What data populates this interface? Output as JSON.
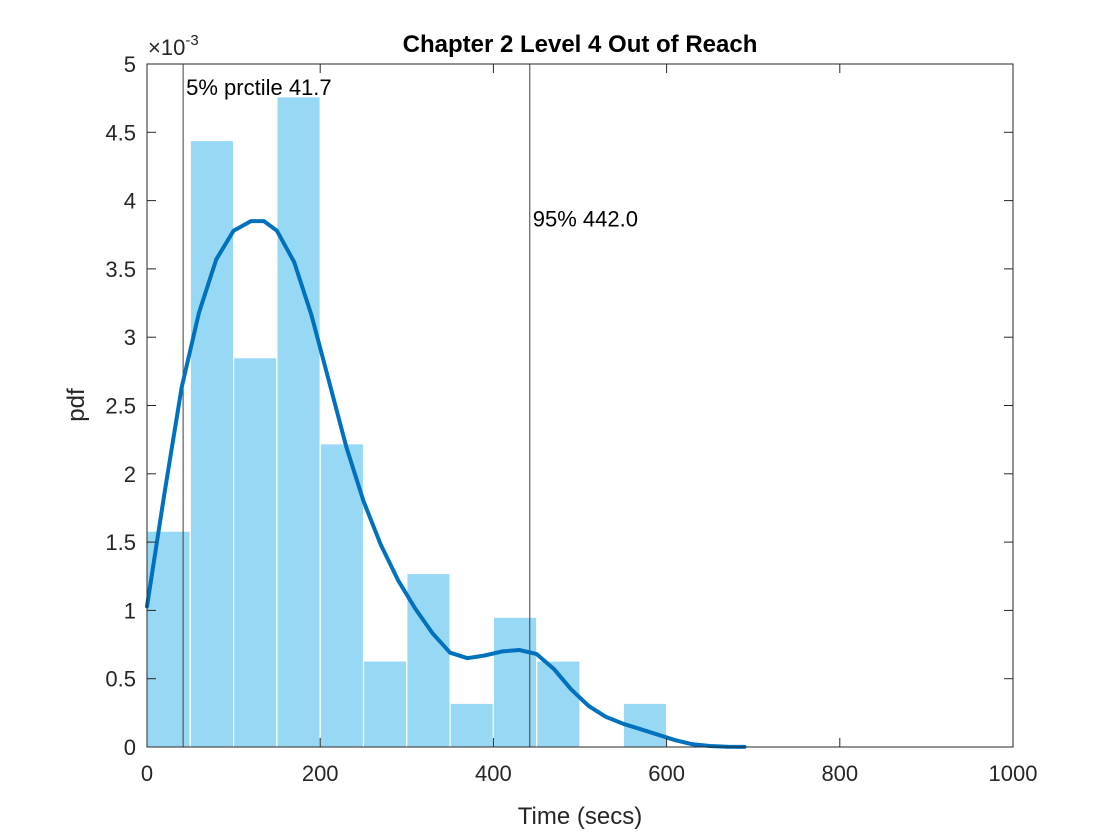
{
  "chart_data": {
    "type": "bar",
    "title": "Chapter 2 Level 4 Out of Reach",
    "xlabel": "Time (secs)",
    "ylabel": "pdf",
    "xlim": [
      0,
      1000
    ],
    "ylim": [
      0,
      0.005
    ],
    "y_exponent_label": "×10",
    "y_exponent_power": "-3",
    "xticks": [
      0,
      200,
      400,
      600,
      800,
      1000
    ],
    "xtick_labels": [
      "0",
      "200",
      "400",
      "600",
      "800",
      "1000"
    ],
    "yticks": [
      0,
      0.0005,
      0.001,
      0.0015,
      0.002,
      0.0025,
      0.003,
      0.0035,
      0.004,
      0.0045,
      0.005
    ],
    "ytick_labels": [
      "0",
      "0.5",
      "1",
      "1.5",
      "2",
      "2.5",
      "3",
      "3.5",
      "4",
      "4.5",
      "5"
    ],
    "bin_edges": [
      0,
      50,
      100,
      150,
      200,
      250,
      300,
      350,
      400,
      450,
      500,
      550,
      600
    ],
    "values": [
      0.00158,
      0.00444,
      0.00285,
      0.00476,
      0.00222,
      0.00063,
      0.00127,
      0.00032,
      0.00095,
      0.00063,
      0,
      0.00032
    ],
    "bar_color": "#97D8F4",
    "curve": {
      "color": "#0072BD",
      "x": [
        0,
        20,
        40,
        60,
        80,
        100,
        120,
        135,
        150,
        170,
        190,
        210,
        230,
        250,
        270,
        290,
        310,
        330,
        350,
        370,
        390,
        410,
        430,
        450,
        470,
        490,
        510,
        530,
        550,
        570,
        590,
        610,
        630,
        650,
        670,
        690
      ],
      "y": [
        0.00103,
        0.00185,
        0.00263,
        0.00318,
        0.00357,
        0.00378,
        0.00385,
        0.00385,
        0.00378,
        0.00355,
        0.00316,
        0.00268,
        0.0022,
        0.0018,
        0.00148,
        0.00122,
        0.00101,
        0.00083,
        0.00069,
        0.00065,
        0.00067,
        0.0007,
        0.00071,
        0.00068,
        0.00057,
        0.00042,
        0.0003,
        0.00022,
        0.00017,
        0.00013,
        9e-05,
        5e-05,
        2e-05,
        7e-06,
        2e-06,
        5e-07
      ]
    },
    "percentile_lines": [
      {
        "x": 41.7,
        "label": "5% prctile 41.7",
        "label_y": 0.00483
      },
      {
        "x": 442.0,
        "label": "95% 442.0",
        "label_y": 0.00387
      }
    ],
    "grid": false,
    "legend": "none"
  }
}
